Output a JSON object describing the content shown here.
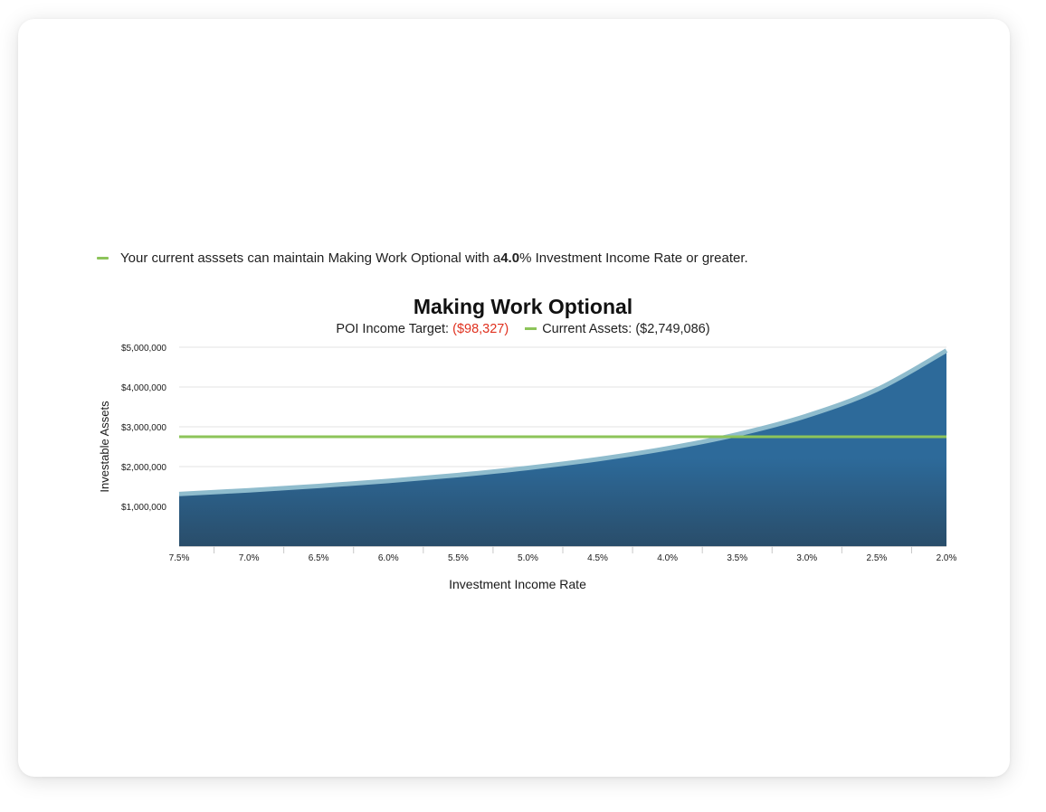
{
  "note": {
    "prefix": "Your current asssets can maintain Making Work Optional with a ",
    "rate": "4.0",
    "suffix": "% Investment Income Rate or greater.",
    "legend_color": "#8dc45a"
  },
  "chart_data": {
    "type": "area",
    "title": "Making Work Optional",
    "subtitle": {
      "target_label": "POI Income Target: ",
      "target_value": "($98,327)",
      "target_color": "#e0311f",
      "assets_label": "Current Assets: ($2,749,086)"
    },
    "xlabel": "Investment Income Rate",
    "ylabel": "Investable Assets",
    "x_ticks": [
      "7.5%",
      "7.0%",
      "6.5%",
      "6.0%",
      "5.5%",
      "5.0%",
      "4.5%",
      "4.0%",
      "3.5%",
      "3.0%",
      "2.5%",
      "2.0%"
    ],
    "y_ticks": [
      "$1,000,000",
      "$2,000,000",
      "$3,000,000",
      "$4,000,000",
      "$5,000,000"
    ],
    "ylim": [
      0,
      5000000
    ],
    "x_reversed": true,
    "x": [
      7.5,
      7.0,
      6.5,
      6.0,
      5.5,
      5.0,
      4.5,
      4.0,
      3.5,
      3.0,
      2.5,
      2.0
    ],
    "series": [
      {
        "values": [
          1311027,
          1404671,
          1512723,
          1638783,
          1787764,
          1966540,
          2185044,
          2458175,
          2809343,
          3277567,
          3933080,
          4916350
        ],
        "color": "#2d6a9a",
        "edge_color": "#8fbccd"
      }
    ],
    "reference_line": {
      "value": 2749086,
      "color": "#8dc45a"
    },
    "grid": true
  }
}
